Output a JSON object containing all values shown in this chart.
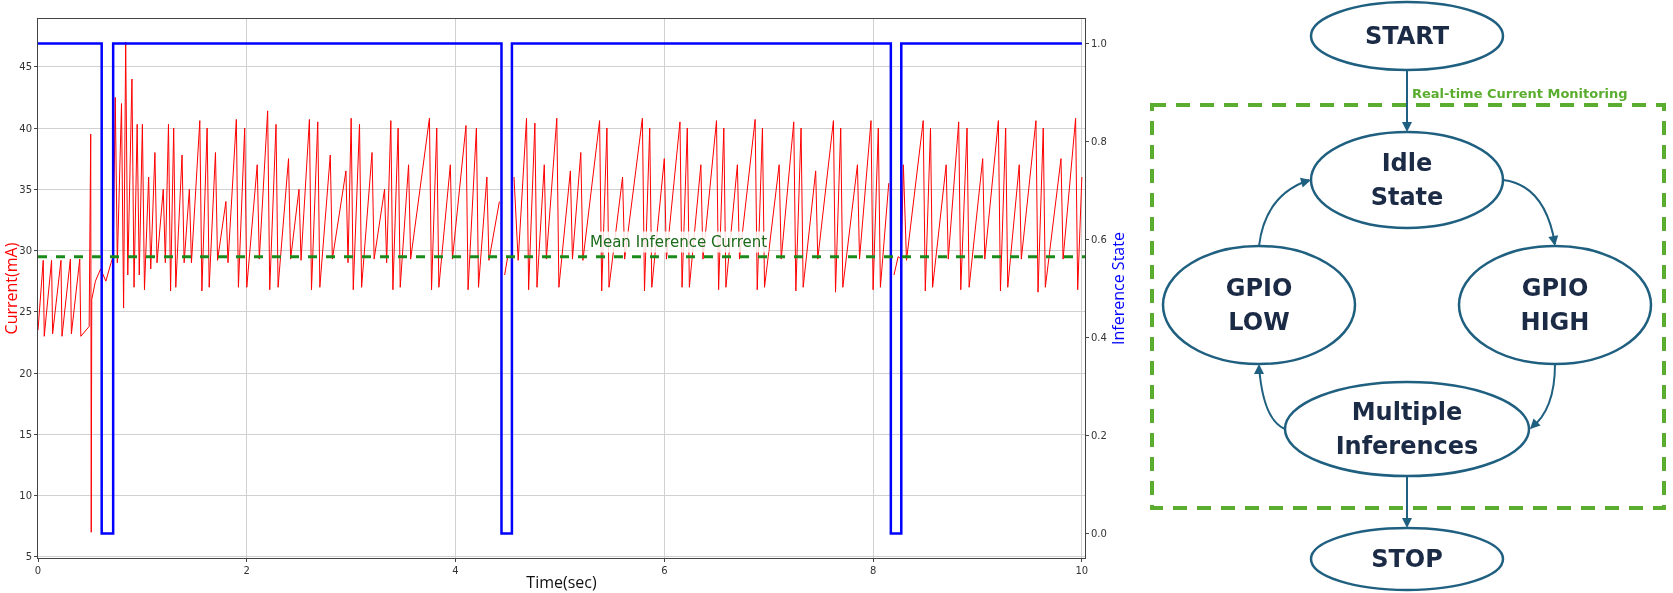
{
  "chart_data": [
    {
      "type": "line",
      "xlabel": "Time(sec)",
      "ylabel": "Current(mA)",
      "y2label": "Inference State",
      "xlim": [
        0,
        10.03
      ],
      "xticks": [
        0,
        2,
        4,
        6,
        8,
        10
      ],
      "ylim": [
        4.9,
        48.9
      ],
      "yticks": [
        5,
        10,
        15,
        20,
        25,
        30,
        35,
        40,
        45
      ],
      "y2lim": [
        -0.05,
        1.05
      ],
      "y2ticks": [
        {
          "value": 0,
          "label": "0.0"
        },
        {
          "value": 0.2,
          "label": "0.2"
        },
        {
          "value": 0.4,
          "label": "0.4"
        },
        {
          "value": 0.6,
          "label": "0.6"
        },
        {
          "value": 0.8,
          "label": "0.8"
        },
        {
          "value": 1,
          "label": "1.0"
        }
      ],
      "grid": true,
      "ref_lines": [
        {
          "axis": "y",
          "value": 29.5,
          "label": "Mean Inference Current",
          "color": "#1a8a1a",
          "line_style": "dashed"
        }
      ],
      "series": [
        {
          "type": "line",
          "color": "#ff0000",
          "x": [
            0,
            0.05,
            0.06,
            0.13,
            0.14,
            0.22,
            0.23,
            0.31,
            0.32,
            0.4,
            0.41,
            0.49,
            0.505,
            0.51,
            0.515,
            0.55,
            0.6,
            0.65,
            0.7,
            0.72,
            0.74,
            0.76,
            0.8,
            0.82,
            0.84,
            0.86,
            0.9,
            0.92,
            0.95,
            0.97,
            1.0,
            1.02,
            1.06,
            1.08,
            1.12,
            1.14,
            1.2,
            1.22,
            1.25,
            1.27,
            1.3,
            1.32,
            1.38,
            1.4,
            1.45,
            1.47,
            1.55,
            1.57,
            1.62,
            1.64,
            1.7,
            1.72,
            1.8,
            1.82,
            1.9,
            1.92,
            1.98,
            2.0,
            2.1,
            2.12,
            2.2,
            2.22,
            2.28,
            2.3,
            2.4,
            2.42,
            2.5,
            2.52,
            2.6,
            2.62,
            2.68,
            2.7,
            2.8,
            2.82,
            2.95,
            2.97,
            3.0,
            3.02,
            3.08,
            3.1,
            3.2,
            3.22,
            3.32,
            3.34,
            3.38,
            3.4,
            3.45,
            3.47,
            3.55,
            3.57,
            3.75,
            3.77,
            3.82,
            3.84,
            3.95,
            3.97,
            4.1,
            4.12,
            4.2,
            4.22,
            4.3,
            4.32,
            4.42,
            4.44,
            4.47,
            4.5,
            4.54,
            4.56,
            4.6,
            4.68,
            4.7,
            4.76,
            4.78,
            4.85,
            4.87,
            4.97,
            4.99,
            5.1,
            5.12,
            5.2,
            5.22,
            5.38,
            5.4,
            5.45,
            5.47,
            5.6,
            5.62,
            5.79,
            5.81,
            5.86,
            5.88,
            6.0,
            6.02,
            6.15,
            6.17,
            6.22,
            6.24,
            6.35,
            6.37,
            6.5,
            6.52,
            6.57,
            6.59,
            6.7,
            6.72,
            6.87,
            6.89,
            6.94,
            6.96,
            7.1,
            7.12,
            7.24,
            7.26,
            7.31,
            7.33,
            7.45,
            7.47,
            7.62,
            7.64,
            7.69,
            7.71,
            7.85,
            7.87,
            7.98,
            8.0,
            8.05,
            8.07,
            8.15,
            8.17,
            8.2,
            8.24,
            8.27,
            8.29,
            8.32,
            8.48,
            8.5,
            8.55,
            8.57,
            8.7,
            8.72,
            8.82,
            8.84,
            8.9,
            8.92,
            9.05,
            9.07,
            9.2,
            9.22,
            9.27,
            9.29,
            9.4,
            9.42,
            9.56,
            9.58,
            9.63,
            9.65,
            9.8,
            9.82,
            9.94,
            9.96,
            10.0
          ],
          "values": [
            23.5,
            29.2,
            23,
            29.2,
            23.2,
            29.2,
            23,
            29.3,
            23.2,
            29.3,
            23,
            23.8,
            39.5,
            7,
            26,
            27.5,
            28.5,
            27.5,
            29,
            29.5,
            42.5,
            29,
            42,
            25.3,
            47,
            28,
            44,
            27,
            40.3,
            28,
            40.3,
            26.8,
            36,
            28.5,
            38,
            29,
            35,
            29,
            40.3,
            26.7,
            40,
            27,
            37.8,
            29,
            35,
            29,
            40.6,
            26.7,
            40,
            27,
            38,
            29.2,
            34,
            29,
            40.7,
            27,
            40,
            27,
            37,
            29.3,
            41.4,
            26.8,
            40.3,
            27,
            37.5,
            29.3,
            35,
            29.2,
            40.7,
            26.8,
            40.5,
            27,
            37.8,
            29.3,
            36.5,
            29,
            40.8,
            26.8,
            40.3,
            27,
            38,
            29.3,
            35,
            29,
            40.6,
            26.8,
            40,
            27,
            37,
            29.3,
            40.8,
            26.8,
            40,
            27,
            37,
            29.3,
            40.2,
            26.8,
            40,
            27,
            36,
            29.2,
            34,
            null,
            28,
            29.5,
            null,
            36,
            29.2,
            40.8,
            26.8,
            40.4,
            27,
            37,
            29.3,
            40.8,
            27,
            36.5,
            29.3,
            38,
            29.2,
            40.6,
            26.7,
            40,
            27,
            36,
            29.3,
            40.8,
            26.7,
            40,
            27,
            37.5,
            29.3,
            40.5,
            27,
            40,
            27,
            37,
            29.3,
            40.6,
            26.8,
            40,
            27,
            37,
            29.3,
            40.7,
            26.8,
            40,
            27,
            37,
            29.3,
            40.5,
            26.7,
            40,
            27,
            36.5,
            29.3,
            40.6,
            26.6,
            40,
            27,
            37,
            29.3,
            40.6,
            26.8,
            40,
            27,
            35.5,
            null,
            28,
            29.5,
            29.3,
            37,
            29.2,
            40.6,
            26.7,
            40,
            27,
            37,
            29.3,
            40.5,
            26.8,
            40,
            27,
            37.5,
            29.3,
            40.6,
            26.7,
            40,
            27,
            37,
            29.3,
            40.6,
            26.6,
            40,
            27,
            37.5,
            29.3,
            40.8,
            26.8,
            36
          ]
        },
        {
          "type": "step",
          "axis": "y2",
          "color": "#0000ff",
          "x": [
            0,
            0.61,
            0.72,
            4.44,
            4.54,
            8.17,
            8.27,
            10.0
          ],
          "values": [
            1,
            0,
            1,
            0,
            1,
            0,
            1,
            1
          ]
        }
      ]
    },
    {
      "type": "other",
      "annotations": [
        "START",
        "Idle State",
        "GPIO HIGH",
        "Multiple Inferences",
        "GPIO LOW",
        "STOP",
        "Real-time Current Monitoring"
      ]
    }
  ]
}
